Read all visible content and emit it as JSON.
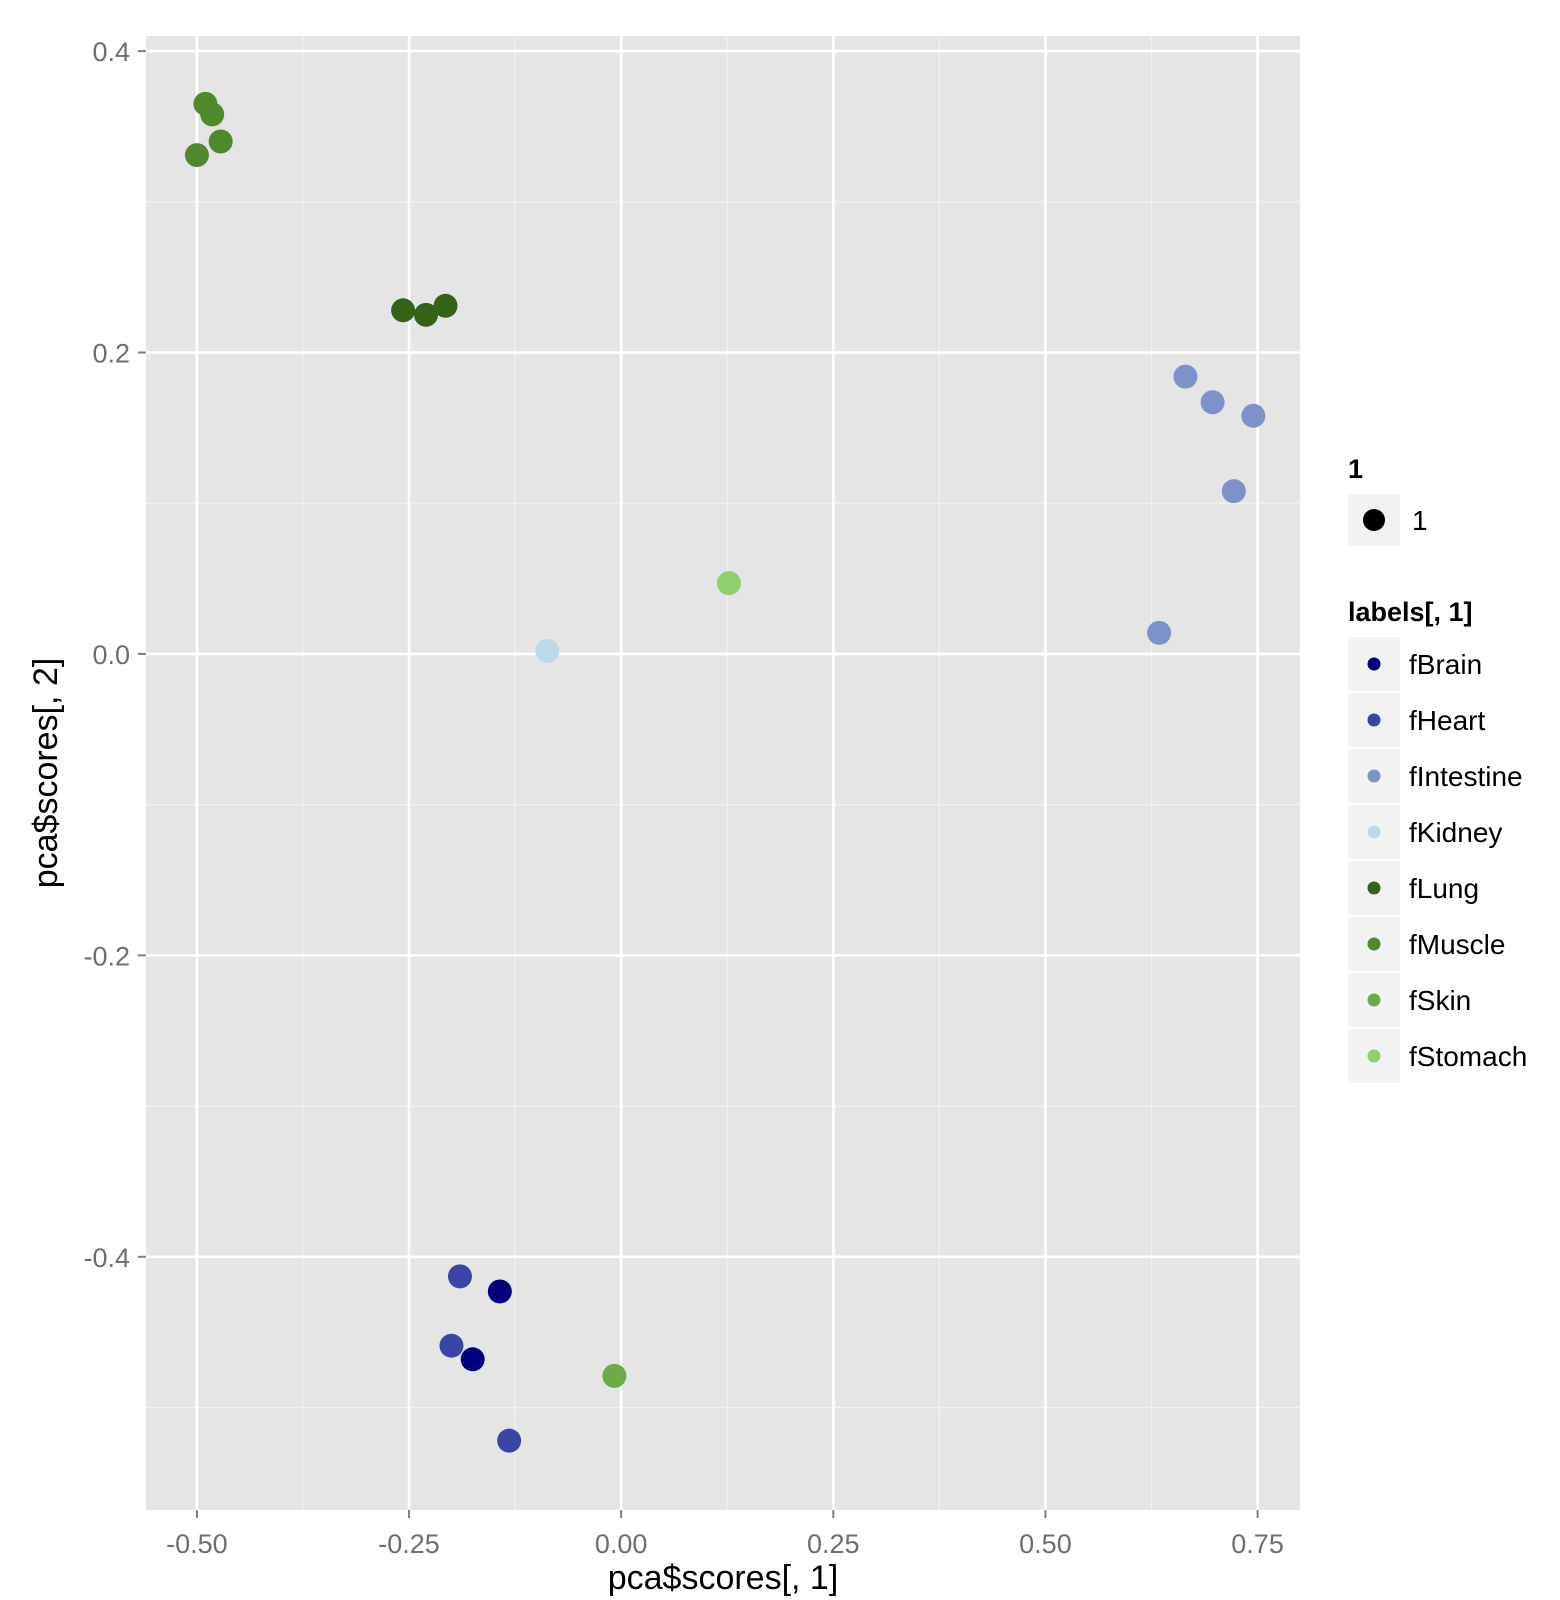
{
  "chart_data": {
    "type": "scatter",
    "title": "",
    "xlabel": "pca$scores[, 1]",
    "ylabel": "pca$scores[, 2]",
    "xlim": [
      -0.56,
      0.8
    ],
    "ylim": [
      -0.568,
      0.41
    ],
    "x_ticks": [
      -0.5,
      -0.25,
      0.0,
      0.25,
      0.5,
      0.75
    ],
    "x_tick_labels": [
      "-0.50",
      "-0.25",
      "0.00",
      "0.25",
      "0.50",
      "0.75"
    ],
    "y_ticks": [
      -0.4,
      -0.2,
      0.0,
      0.2,
      0.4
    ],
    "y_tick_labels": [
      "-0.4",
      "-0.2",
      "0.0",
      "0.2",
      "0.4"
    ],
    "grid": true,
    "background_color": "#e5e5e5",
    "legend_placement": "right",
    "size_legend": {
      "title": "1",
      "items": [
        {
          "label": "1"
        }
      ]
    },
    "color_legend": {
      "title": "labels[, 1]"
    },
    "series": [
      {
        "name": "fBrain",
        "color": "#00007f",
        "points": [
          {
            "x": -0.143,
            "y": -0.423
          },
          {
            "x": -0.175,
            "y": -0.468
          }
        ]
      },
      {
        "name": "fHeart",
        "color": "#3a46a6",
        "points": [
          {
            "x": -0.19,
            "y": -0.413
          },
          {
            "x": -0.2,
            "y": -0.459
          },
          {
            "x": -0.132,
            "y": -0.522
          }
        ]
      },
      {
        "name": "fIntestine",
        "color": "#7d92c9",
        "points": [
          {
            "x": 0.665,
            "y": 0.184
          },
          {
            "x": 0.697,
            "y": 0.167
          },
          {
            "x": 0.745,
            "y": 0.158
          },
          {
            "x": 0.722,
            "y": 0.108
          },
          {
            "x": 0.634,
            "y": 0.014
          }
        ]
      },
      {
        "name": "fKidney",
        "color": "#b9dae8",
        "points": [
          {
            "x": -0.087,
            "y": 0.002
          }
        ]
      },
      {
        "name": "fLung",
        "color": "#356316",
        "points": [
          {
            "x": -0.257,
            "y": 0.228
          },
          {
            "x": -0.23,
            "y": 0.225
          },
          {
            "x": -0.207,
            "y": 0.231
          }
        ]
      },
      {
        "name": "fMuscle",
        "color": "#4e8a2c",
        "points": [
          {
            "x": -0.49,
            "y": 0.365
          },
          {
            "x": -0.482,
            "y": 0.358
          },
          {
            "x": -0.472,
            "y": 0.34
          },
          {
            "x": -0.5,
            "y": 0.331
          }
        ]
      },
      {
        "name": "fSkin",
        "color": "#6aac48",
        "points": [
          {
            "x": -0.008,
            "y": -0.479
          }
        ]
      },
      {
        "name": "fStomach",
        "color": "#8fcf6e",
        "points": [
          {
            "x": 0.127,
            "y": 0.047
          }
        ]
      }
    ]
  }
}
